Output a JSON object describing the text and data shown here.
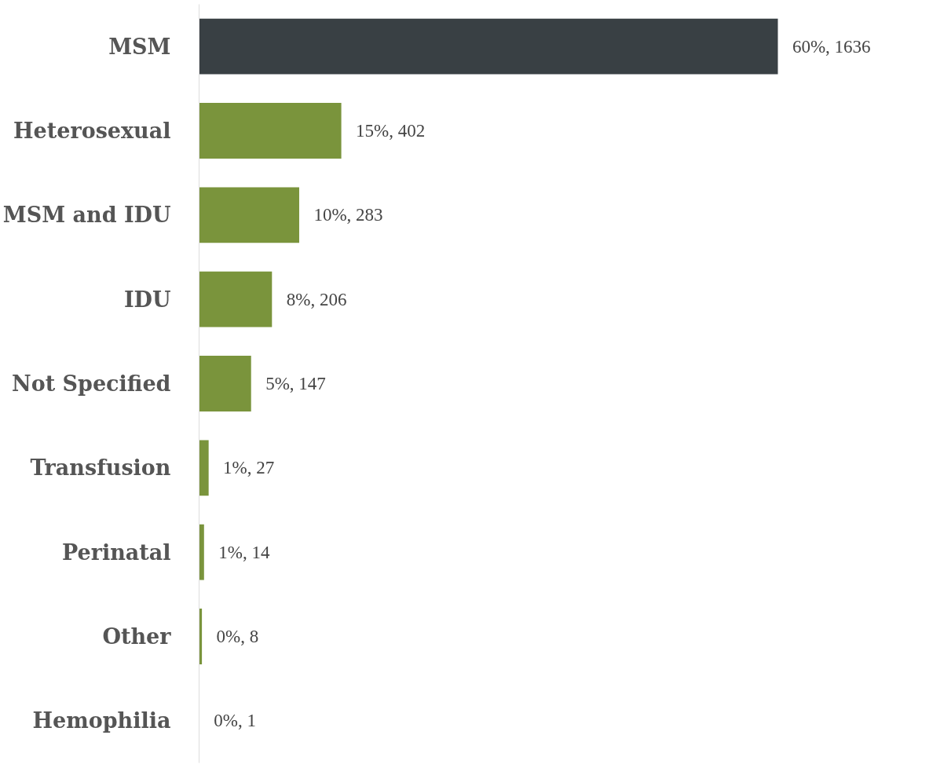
{
  "chart_data": {
    "type": "bar",
    "orientation": "horizontal",
    "categories": [
      "MSM",
      "Heterosexual",
      "MSM and IDU",
      "IDU",
      "Not Specified",
      "Transfusion",
      "Perinatal",
      "Other",
      "Hemophilia"
    ],
    "values": [
      1636,
      402,
      283,
      206,
      147,
      27,
      14,
      8,
      1
    ],
    "colors": [
      "#394044",
      "#7a943c",
      "#7a943c",
      "#7a943c",
      "#7a943c",
      "#7a943c",
      "#7a943c",
      "#7a943c",
      "#7a943c"
    ],
    "value_labels": [
      "60%, 1636",
      "15%, 402",
      "10%, 283",
      "8%, 206",
      "5%, 147",
      "1%, 27",
      "1%, 14",
      "0%, 8",
      "0%, 1"
    ],
    "grid": false
  }
}
